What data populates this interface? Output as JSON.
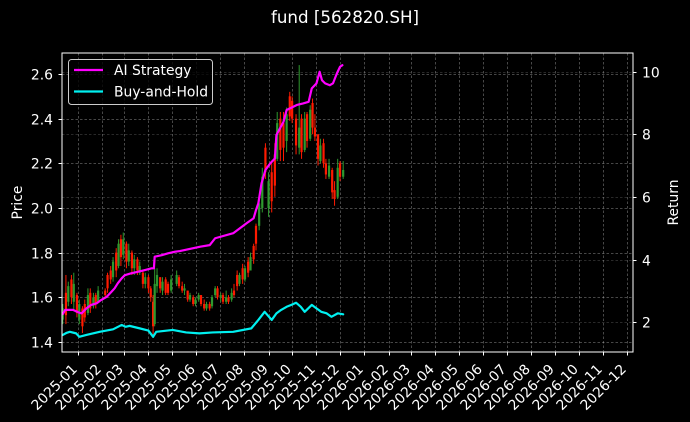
{
  "figure": {
    "title": "fund [562820.SH]",
    "background": "#000000",
    "foreground": "#ffffff"
  },
  "chart_data": {
    "type": "line",
    "price_type": "candlestick",
    "title": "fund [562820.SH]",
    "xlabel": "",
    "ylabel": "Price",
    "ylabel_right": "Return",
    "xlim": [
      "2024-12-12",
      "2026-12-09"
    ],
    "ylim": [
      1.355,
      2.694
    ],
    "ylim_right": [
      1.045,
      10.6
    ],
    "grid": true,
    "x_ticks": [
      "2025-01",
      "2025-02",
      "2025-03",
      "2025-04",
      "2025-05",
      "2025-06",
      "2025-07",
      "2025-08",
      "2025-09",
      "2025-10",
      "2025-11",
      "2025-12",
      "2026-01",
      "2026-02",
      "2026-03",
      "2026-04",
      "2026-05",
      "2026-06",
      "2026-07",
      "2026-08",
      "2026-09",
      "2026-10",
      "2026-11",
      "2026-12"
    ],
    "y_ticks": [
      "1.4",
      "1.6",
      "1.8",
      "2.0",
      "2.2",
      "2.4",
      "2.6"
    ],
    "y_ticks_right": [
      "2",
      "4",
      "6",
      "8",
      "10"
    ],
    "legend": {
      "position": "upper left",
      "entries": [
        {
          "label": "AI Strategy",
          "color": "#ff00ff"
        },
        {
          "label": "Buy-and-Hold",
          "color": "#00f0f0"
        }
      ]
    },
    "series": [
      {
        "name": "AI Strategy",
        "axis": "right",
        "color": "#ff00ff",
        "points": [
          [
            "2024-12-13",
            2.26
          ],
          [
            "2024-12-16",
            2.39
          ],
          [
            "2024-12-26",
            2.39
          ],
          [
            "2025-01-02",
            2.31
          ],
          [
            "2025-01-06",
            2.28
          ],
          [
            "2025-01-12",
            2.44
          ],
          [
            "2025-01-18",
            2.55
          ],
          [
            "2025-01-25",
            2.6
          ],
          [
            "2025-01-31",
            2.71
          ],
          [
            "2025-02-07",
            2.81
          ],
          [
            "2025-02-13",
            2.97
          ],
          [
            "2025-02-17",
            3.08
          ],
          [
            "2025-02-21",
            3.24
          ],
          [
            "2025-02-26",
            3.4
          ],
          [
            "2025-03-02",
            3.5
          ],
          [
            "2025-03-10",
            3.56
          ],
          [
            "2025-03-19",
            3.61
          ],
          [
            "2025-03-27",
            3.66
          ],
          [
            "2025-04-05",
            3.72
          ],
          [
            "2025-04-08",
            3.72
          ],
          [
            "2025-04-09",
            4.09
          ],
          [
            "2025-04-18",
            4.14
          ],
          [
            "2025-04-26",
            4.2
          ],
          [
            "2025-05-05",
            4.25
          ],
          [
            "2025-05-11",
            4.27
          ],
          [
            "2025-06-06",
            4.41
          ],
          [
            "2025-06-18",
            4.46
          ],
          [
            "2025-06-25",
            4.68
          ],
          [
            "2025-07-18",
            4.84
          ],
          [
            "2025-08-04",
            5.16
          ],
          [
            "2025-08-13",
            5.32
          ],
          [
            "2025-08-16",
            5.58
          ],
          [
            "2025-08-19",
            5.8
          ],
          [
            "2025-08-23",
            6.43
          ],
          [
            "2025-08-28",
            6.86
          ],
          [
            "2025-09-03",
            7.07
          ],
          [
            "2025-09-09",
            7.23
          ],
          [
            "2025-09-11",
            7.98
          ],
          [
            "2025-09-20",
            8.4
          ],
          [
            "2025-09-24",
            8.78
          ],
          [
            "2025-10-07",
            8.94
          ],
          [
            "2025-10-15",
            8.99
          ],
          [
            "2025-10-22",
            9.04
          ],
          [
            "2025-10-26",
            9.47
          ],
          [
            "2025-11-01",
            9.63
          ],
          [
            "2025-11-05",
            10.0
          ],
          [
            "2025-11-08",
            9.73
          ],
          [
            "2025-11-12",
            9.63
          ],
          [
            "2025-11-18",
            9.57
          ],
          [
            "2025-11-22",
            9.63
          ],
          [
            "2025-11-27",
            9.95
          ],
          [
            "2025-12-01",
            10.16
          ],
          [
            "2025-12-04",
            10.21
          ]
        ]
      },
      {
        "name": "Buy-and-Hold",
        "axis": "right",
        "color": "#00f0f0",
        "points": [
          [
            "2024-12-13",
            1.59
          ],
          [
            "2024-12-18",
            1.66
          ],
          [
            "2024-12-22",
            1.69
          ],
          [
            "2024-12-30",
            1.64
          ],
          [
            "2025-01-03",
            1.53
          ],
          [
            "2025-01-12",
            1.59
          ],
          [
            "2025-01-29",
            1.69
          ],
          [
            "2025-02-15",
            1.77
          ],
          [
            "2025-02-26",
            1.91
          ],
          [
            "2025-03-03",
            1.85
          ],
          [
            "2025-03-08",
            1.88
          ],
          [
            "2025-03-21",
            1.8
          ],
          [
            "2025-04-01",
            1.73
          ],
          [
            "2025-04-07",
            1.53
          ],
          [
            "2025-04-11",
            1.69
          ],
          [
            "2025-05-02",
            1.75
          ],
          [
            "2025-05-19",
            1.67
          ],
          [
            "2025-06-05",
            1.64
          ],
          [
            "2025-06-22",
            1.67
          ],
          [
            "2025-07-18",
            1.69
          ],
          [
            "2025-08-10",
            1.8
          ],
          [
            "2025-08-19",
            2.07
          ],
          [
            "2025-08-27",
            2.33
          ],
          [
            "2025-09-05",
            2.07
          ],
          [
            "2025-09-11",
            2.28
          ],
          [
            "2025-09-17",
            2.39
          ],
          [
            "2025-09-24",
            2.49
          ],
          [
            "2025-09-30",
            2.55
          ],
          [
            "2025-10-06",
            2.62
          ],
          [
            "2025-10-12",
            2.49
          ],
          [
            "2025-10-17",
            2.33
          ],
          [
            "2025-10-26",
            2.55
          ],
          [
            "2025-11-01",
            2.44
          ],
          [
            "2025-11-07",
            2.33
          ],
          [
            "2025-11-14",
            2.28
          ],
          [
            "2025-11-20",
            2.17
          ],
          [
            "2025-11-28",
            2.28
          ],
          [
            "2025-12-05",
            2.25
          ]
        ]
      }
    ],
    "candles": {
      "axis": "left",
      "up_color": "#2e9a2e",
      "down_color": "#ff1a00",
      "columns": [
        "date",
        "open",
        "high",
        "low",
        "close"
      ],
      "ohlc": [
        [
          "2024-12-13",
          1.5,
          1.57,
          1.48,
          1.55
        ],
        [
          "2024-12-17",
          1.62,
          1.7,
          1.48,
          1.52
        ],
        [
          "2024-12-20",
          1.58,
          1.67,
          1.56,
          1.65
        ],
        [
          "2024-12-24",
          1.68,
          1.7,
          1.57,
          1.6
        ],
        [
          "2024-12-27",
          1.58,
          1.71,
          1.54,
          1.66
        ],
        [
          "2024-12-31",
          1.61,
          1.62,
          1.51,
          1.53
        ],
        [
          "2025-01-03",
          1.5,
          1.59,
          1.48,
          1.57
        ],
        [
          "2025-01-07",
          1.55,
          1.56,
          1.44,
          1.47
        ],
        [
          "2025-01-10",
          1.57,
          1.59,
          1.49,
          1.51
        ],
        [
          "2025-01-14",
          1.53,
          1.64,
          1.52,
          1.61
        ],
        [
          "2025-01-17",
          1.62,
          1.64,
          1.53,
          1.55
        ],
        [
          "2025-01-21",
          1.56,
          1.62,
          1.55,
          1.6
        ],
        [
          "2025-01-24",
          1.61,
          1.62,
          1.55,
          1.57
        ],
        [
          "2025-01-27",
          1.58,
          1.65,
          1.58,
          1.63
        ],
        [
          "2025-02-05",
          1.63,
          1.64,
          1.6,
          1.61
        ],
        [
          "2025-02-08",
          1.7,
          1.71,
          1.62,
          1.64
        ],
        [
          "2025-02-12",
          1.72,
          1.74,
          1.66,
          1.68
        ],
        [
          "2025-02-15",
          1.69,
          1.78,
          1.67,
          1.76
        ],
        [
          "2025-02-19",
          1.8,
          1.82,
          1.69,
          1.72
        ],
        [
          "2025-02-22",
          1.74,
          1.86,
          1.73,
          1.84
        ],
        [
          "2025-02-25",
          1.86,
          1.88,
          1.74,
          1.78
        ],
        [
          "2025-02-28",
          1.79,
          1.89,
          1.77,
          1.86
        ],
        [
          "2025-03-04",
          1.84,
          1.85,
          1.73,
          1.76
        ],
        [
          "2025-03-07",
          1.76,
          1.84,
          1.74,
          1.81
        ],
        [
          "2025-03-11",
          1.8,
          1.81,
          1.7,
          1.73
        ],
        [
          "2025-03-14",
          1.73,
          1.79,
          1.7,
          1.77
        ],
        [
          "2025-03-18",
          1.77,
          1.78,
          1.7,
          1.72
        ],
        [
          "2025-03-21",
          1.71,
          1.76,
          1.7,
          1.74
        ],
        [
          "2025-03-25",
          1.71,
          1.72,
          1.64,
          1.66
        ],
        [
          "2025-03-28",
          1.66,
          1.71,
          1.64,
          1.69
        ],
        [
          "2025-04-01",
          1.69,
          1.7,
          1.62,
          1.64
        ],
        [
          "2025-04-04",
          1.64,
          1.65,
          1.58,
          1.6
        ],
        [
          "2025-04-07",
          1.58,
          1.61,
          1.43,
          1.47
        ],
        [
          "2025-04-09",
          1.48,
          1.73,
          1.47,
          1.66
        ],
        [
          "2025-04-12",
          1.65,
          1.73,
          1.62,
          1.7
        ],
        [
          "2025-04-16",
          1.69,
          1.69,
          1.62,
          1.64
        ],
        [
          "2025-04-19",
          1.63,
          1.69,
          1.61,
          1.67
        ],
        [
          "2025-04-23",
          1.68,
          1.69,
          1.61,
          1.62
        ],
        [
          "2025-04-26",
          1.66,
          1.67,
          1.61,
          1.62
        ],
        [
          "2025-04-30",
          1.63,
          1.7,
          1.62,
          1.68
        ],
        [
          "2025-05-07",
          1.66,
          1.72,
          1.65,
          1.7
        ],
        [
          "2025-05-10",
          1.69,
          1.7,
          1.64,
          1.65
        ],
        [
          "2025-05-14",
          1.65,
          1.67,
          1.62,
          1.63
        ],
        [
          "2025-05-17",
          1.63,
          1.66,
          1.61,
          1.64
        ],
        [
          "2025-05-21",
          1.63,
          1.63,
          1.58,
          1.59
        ],
        [
          "2025-05-24",
          1.59,
          1.62,
          1.58,
          1.61
        ],
        [
          "2025-05-28",
          1.6,
          1.61,
          1.56,
          1.57
        ],
        [
          "2025-05-31",
          1.57,
          1.6,
          1.56,
          1.59
        ],
        [
          "2025-06-04",
          1.59,
          1.62,
          1.58,
          1.61
        ],
        [
          "2025-06-07",
          1.61,
          1.61,
          1.56,
          1.57
        ],
        [
          "2025-06-11",
          1.57,
          1.59,
          1.54,
          1.55
        ],
        [
          "2025-06-14",
          1.55,
          1.58,
          1.54,
          1.57
        ],
        [
          "2025-06-18",
          1.57,
          1.58,
          1.54,
          1.55
        ],
        [
          "2025-06-21",
          1.56,
          1.61,
          1.55,
          1.6
        ],
        [
          "2025-06-25",
          1.61,
          1.65,
          1.6,
          1.64
        ],
        [
          "2025-06-28",
          1.64,
          1.65,
          1.59,
          1.6
        ],
        [
          "2025-07-02",
          1.6,
          1.62,
          1.58,
          1.61
        ],
        [
          "2025-07-05",
          1.61,
          1.62,
          1.57,
          1.58
        ],
        [
          "2025-07-09",
          1.58,
          1.63,
          1.57,
          1.6
        ],
        [
          "2025-07-12",
          1.6,
          1.61,
          1.57,
          1.58
        ],
        [
          "2025-07-16",
          1.59,
          1.64,
          1.58,
          1.62
        ],
        [
          "2025-07-19",
          1.63,
          1.66,
          1.6,
          1.61
        ],
        [
          "2025-07-23",
          1.7,
          1.72,
          1.63,
          1.65
        ],
        [
          "2025-07-26",
          1.66,
          1.71,
          1.65,
          1.7
        ],
        [
          "2025-07-30",
          1.73,
          1.75,
          1.66,
          1.68
        ],
        [
          "2025-08-02",
          1.68,
          1.74,
          1.67,
          1.73
        ],
        [
          "2025-08-06",
          1.76,
          1.78,
          1.69,
          1.71
        ],
        [
          "2025-08-09",
          1.72,
          1.8,
          1.72,
          1.78
        ],
        [
          "2025-08-13",
          1.83,
          1.84,
          1.75,
          1.77
        ],
        [
          "2025-08-16",
          1.92,
          1.93,
          1.81,
          1.84
        ],
        [
          "2025-08-20",
          1.92,
          2.05,
          1.9,
          2.02
        ],
        [
          "2025-08-24",
          2.0,
          2.18,
          1.98,
          2.14
        ],
        [
          "2025-08-28",
          2.27,
          2.29,
          2.13,
          2.16
        ],
        [
          "2025-09-01",
          2.0,
          2.16,
          1.96,
          2.12
        ],
        [
          "2025-09-05",
          2.16,
          2.2,
          1.98,
          2.03
        ],
        [
          "2025-09-09",
          2.24,
          2.29,
          2.05,
          2.1
        ],
        [
          "2025-09-12",
          2.22,
          2.43,
          2.21,
          2.38
        ],
        [
          "2025-09-16",
          2.4,
          2.43,
          2.21,
          2.26
        ],
        [
          "2025-09-20",
          2.38,
          2.43,
          2.21,
          2.27
        ],
        [
          "2025-09-24",
          2.3,
          2.45,
          2.25,
          2.42
        ],
        [
          "2025-09-28",
          2.5,
          2.52,
          2.39,
          2.41
        ],
        [
          "2025-10-01",
          2.48,
          2.5,
          2.38,
          2.4
        ],
        [
          "2025-10-06",
          2.4,
          2.42,
          2.24,
          2.28
        ],
        [
          "2025-10-10",
          2.27,
          2.64,
          2.24,
          2.36
        ],
        [
          "2025-10-13",
          2.4,
          2.42,
          2.22,
          2.25
        ],
        [
          "2025-10-17",
          2.26,
          2.43,
          2.25,
          2.4
        ],
        [
          "2025-10-20",
          2.42,
          2.43,
          2.27,
          2.3
        ],
        [
          "2025-10-24",
          2.31,
          2.46,
          2.3,
          2.44
        ],
        [
          "2025-10-27",
          2.47,
          2.49,
          2.33,
          2.36
        ],
        [
          "2025-10-30",
          2.36,
          2.42,
          2.3,
          2.32
        ],
        [
          "2025-11-03",
          2.33,
          2.33,
          2.19,
          2.22
        ],
        [
          "2025-11-06",
          2.21,
          2.31,
          2.2,
          2.28
        ],
        [
          "2025-11-10",
          2.29,
          2.31,
          2.18,
          2.2
        ],
        [
          "2025-11-13",
          2.2,
          2.22,
          2.13,
          2.15
        ],
        [
          "2025-11-17",
          2.14,
          2.22,
          2.13,
          2.19
        ],
        [
          "2025-11-21",
          2.17,
          2.18,
          2.04,
          2.07
        ],
        [
          "2025-11-24",
          2.08,
          2.12,
          2.01,
          2.04
        ],
        [
          "2025-11-28",
          2.05,
          2.22,
          2.04,
          2.18
        ],
        [
          "2025-12-01",
          2.2,
          2.21,
          2.12,
          2.14
        ],
        [
          "2025-12-05",
          2.14,
          2.21,
          2.13,
          2.17
        ]
      ]
    }
  }
}
